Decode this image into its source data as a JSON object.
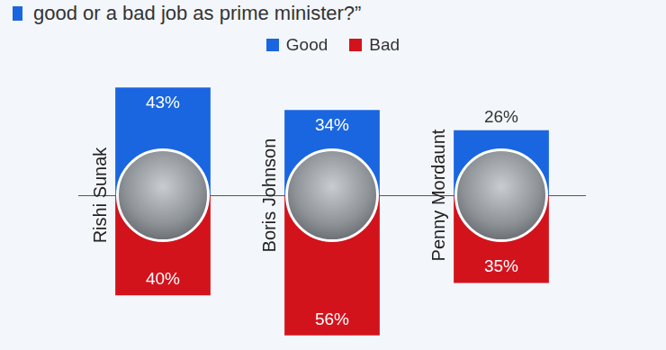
{
  "chart_data": {
    "type": "bar",
    "title": "good or a bad job as prime minister?”",
    "categories": [
      "Rishi Sunak",
      "Boris Johnson",
      "Penny Mordaunt"
    ],
    "series": [
      {
        "name": "Good",
        "color": "#1a66e0",
        "values": [
          43,
          34,
          26
        ],
        "value_labels": [
          "43%",
          "34%",
          "26%"
        ]
      },
      {
        "name": "Bad",
        "color": "#d3131c",
        "values": [
          40,
          56,
          35
        ],
        "value_labels": [
          "40%",
          "56%",
          "35%"
        ],
        "axis": "y2"
      }
    ],
    "ylim": [
      0,
      60
    ],
    "yticks": [
      0,
      20,
      40,
      60
    ],
    "y2lim": [
      0,
      60
    ],
    "y2ticks": [
      0,
      20,
      40,
      60
    ],
    "grid": false,
    "data_labels": true,
    "tick_labels": false,
    "legend": "top"
  }
}
